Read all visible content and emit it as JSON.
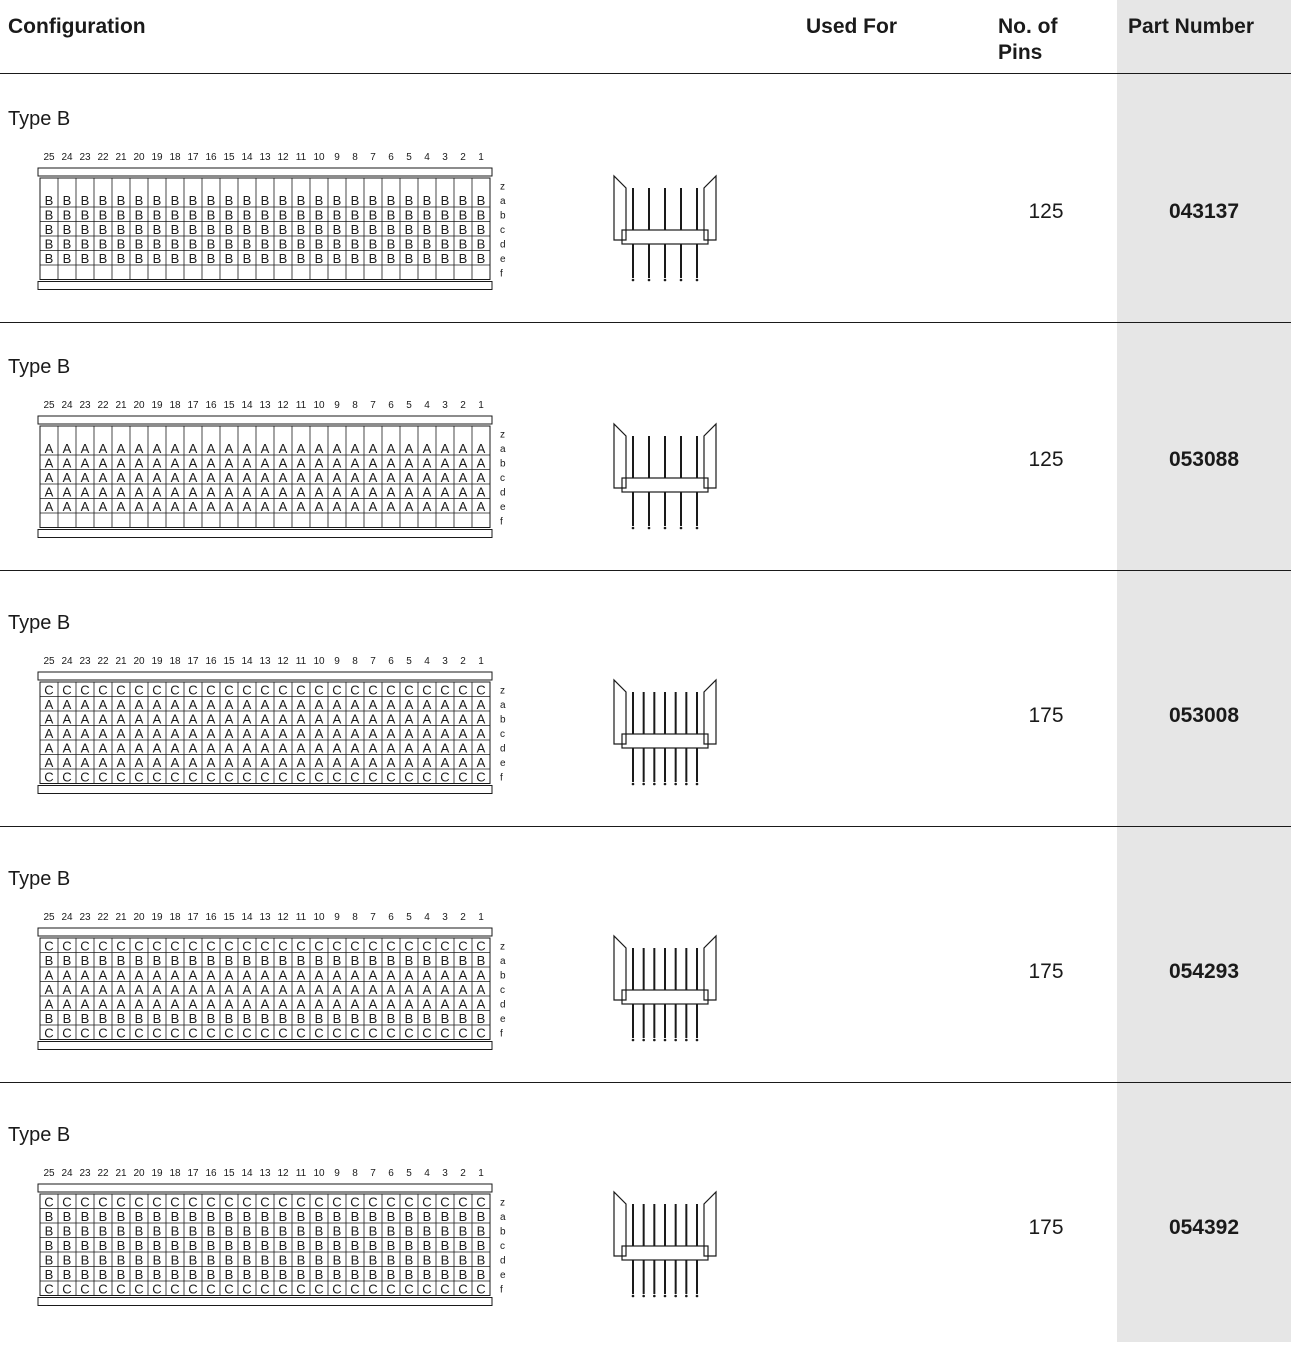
{
  "header": {
    "configuration": "Configuration",
    "used_for": "Used For",
    "no_of_pins": "No. of Pins",
    "part_number": "Part Number"
  },
  "colors": {
    "part_band": "#e6e6e6",
    "line": "#1a1a1a"
  },
  "column_numbers": [
    "25",
    "24",
    "23",
    "22",
    "21",
    "20",
    "19",
    "18",
    "17",
    "16",
    "15",
    "14",
    "13",
    "12",
    "11",
    "10",
    "9",
    "8",
    "7",
    "6",
    "5",
    "4",
    "3",
    "2",
    "1"
  ],
  "row_letters": [
    "z",
    "a",
    "b",
    "c",
    "d",
    "e",
    "f"
  ],
  "rows": [
    {
      "type": "Type B",
      "used_for": "",
      "pins": "125",
      "part": "043137",
      "pattern": [
        "",
        "B",
        "B",
        "B",
        "B",
        "B",
        ""
      ],
      "side_pins": 5
    },
    {
      "type": "Type B",
      "used_for": "",
      "pins": "125",
      "part": "053088",
      "pattern": [
        "",
        "A",
        "A",
        "A",
        "A",
        "A",
        ""
      ],
      "side_pins": 5
    },
    {
      "type": "Type B",
      "used_for": "",
      "pins": "175",
      "part": "053008",
      "pattern": [
        "C",
        "A",
        "A",
        "A",
        "A",
        "A",
        "C"
      ],
      "side_pins": 7
    },
    {
      "type": "Type B",
      "used_for": "",
      "pins": "175",
      "part": "054293",
      "pattern": [
        "C",
        "B",
        "A",
        "A",
        "A",
        "B",
        "C"
      ],
      "side_pins": 7
    },
    {
      "type": "Type B",
      "used_for": "",
      "pins": "175",
      "part": "054392",
      "pattern": [
        "C",
        "B",
        "B",
        "B",
        "B",
        "B",
        "C"
      ],
      "side_pins": 7
    }
  ]
}
